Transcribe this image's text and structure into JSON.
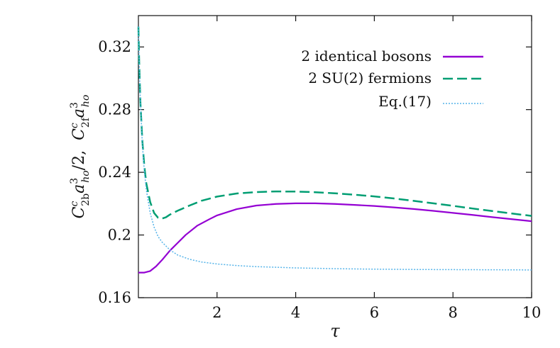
{
  "chart_data": {
    "type": "line",
    "xlabel": "τ",
    "ylabel": {
      "sym1": "C",
      "sup1": "c",
      "sub1": "2b",
      "sym2": "a",
      "sup2": "3",
      "sub2": "ho",
      "mid": "/2,",
      "sym3": "C",
      "sup3": "c",
      "sub3": "2f",
      "sym4": "a",
      "sup4": "3",
      "sub4": "ho"
    },
    "xlim": [
      0,
      10
    ],
    "ylim": [
      0.16,
      0.34
    ],
    "xticks": [
      {
        "value": 2,
        "label": "2"
      },
      {
        "value": 4,
        "label": "4"
      },
      {
        "value": 6,
        "label": "6"
      },
      {
        "value": 8,
        "label": "8"
      },
      {
        "value": 10,
        "label": "10"
      }
    ],
    "yticks": [
      {
        "value": 0.16,
        "label": "0.16"
      },
      {
        "value": 0.2,
        "label": "0.2"
      },
      {
        "value": 0.24,
        "label": "0.24"
      },
      {
        "value": 0.28,
        "label": "0.28"
      },
      {
        "value": 0.32,
        "label": "0.32"
      }
    ],
    "legend_position": "top-right",
    "series": [
      {
        "name": "2 identical bosons",
        "color": "#9400d3",
        "style": "solid",
        "x": [
          0,
          0.15,
          0.3,
          0.45,
          0.6,
          0.8,
          1.0,
          1.2,
          1.5,
          1.8,
          2.0,
          2.5,
          3.0,
          3.5,
          4.0,
          4.5,
          5.0,
          5.5,
          6.0,
          6.5,
          7.0,
          7.5,
          8.0,
          8.5,
          9.0,
          9.5,
          10.0
        ],
        "y": [
          0.176,
          0.176,
          0.177,
          0.18,
          0.184,
          0.19,
          0.195,
          0.2,
          0.206,
          0.21,
          0.2125,
          0.2165,
          0.2188,
          0.2198,
          0.2202,
          0.2202,
          0.2198,
          0.2192,
          0.2185,
          0.2176,
          0.2166,
          0.2154,
          0.2141,
          0.2128,
          0.2114,
          0.2101,
          0.2088
        ]
      },
      {
        "name": "2 SU(2) fermions",
        "color": "#009e73",
        "style": "dashed",
        "x": [
          0,
          0.02,
          0.05,
          0.1,
          0.15,
          0.2,
          0.3,
          0.4,
          0.5,
          0.6,
          0.7,
          0.8,
          1.0,
          1.3,
          1.6,
          2.0,
          2.5,
          3.0,
          3.5,
          4.0,
          4.5,
          5.0,
          5.5,
          6.0,
          6.5,
          7.0,
          7.5,
          8.0,
          8.5,
          9.0,
          9.5,
          10.0
        ],
        "y": [
          0.333,
          0.31,
          0.285,
          0.26,
          0.244,
          0.233,
          0.221,
          0.214,
          0.211,
          0.2105,
          0.2113,
          0.213,
          0.2155,
          0.2188,
          0.2218,
          0.2245,
          0.2265,
          0.2274,
          0.2278,
          0.2277,
          0.2273,
          0.2266,
          0.2257,
          0.2246,
          0.2233,
          0.2218,
          0.2202,
          0.2186,
          0.2169,
          0.2153,
          0.2137,
          0.2122
        ]
      },
      {
        "name": "Eq.(17)",
        "color": "#56b4e9",
        "style": "dotted",
        "x": [
          0,
          0.02,
          0.05,
          0.1,
          0.15,
          0.2,
          0.3,
          0.4,
          0.5,
          0.6,
          0.8,
          1.0,
          1.3,
          1.6,
          2.0,
          2.5,
          3.0,
          4.0,
          5.0,
          6.0,
          7.0,
          8.0,
          9.0,
          10.0
        ],
        "y": [
          0.333,
          0.31,
          0.285,
          0.258,
          0.241,
          0.229,
          0.214,
          0.205,
          0.199,
          0.1955,
          0.1905,
          0.1872,
          0.1845,
          0.1828,
          0.1815,
          0.1805,
          0.1798,
          0.179,
          0.1785,
          0.1782,
          0.178,
          0.1779,
          0.1778,
          0.1777
        ]
      }
    ]
  }
}
